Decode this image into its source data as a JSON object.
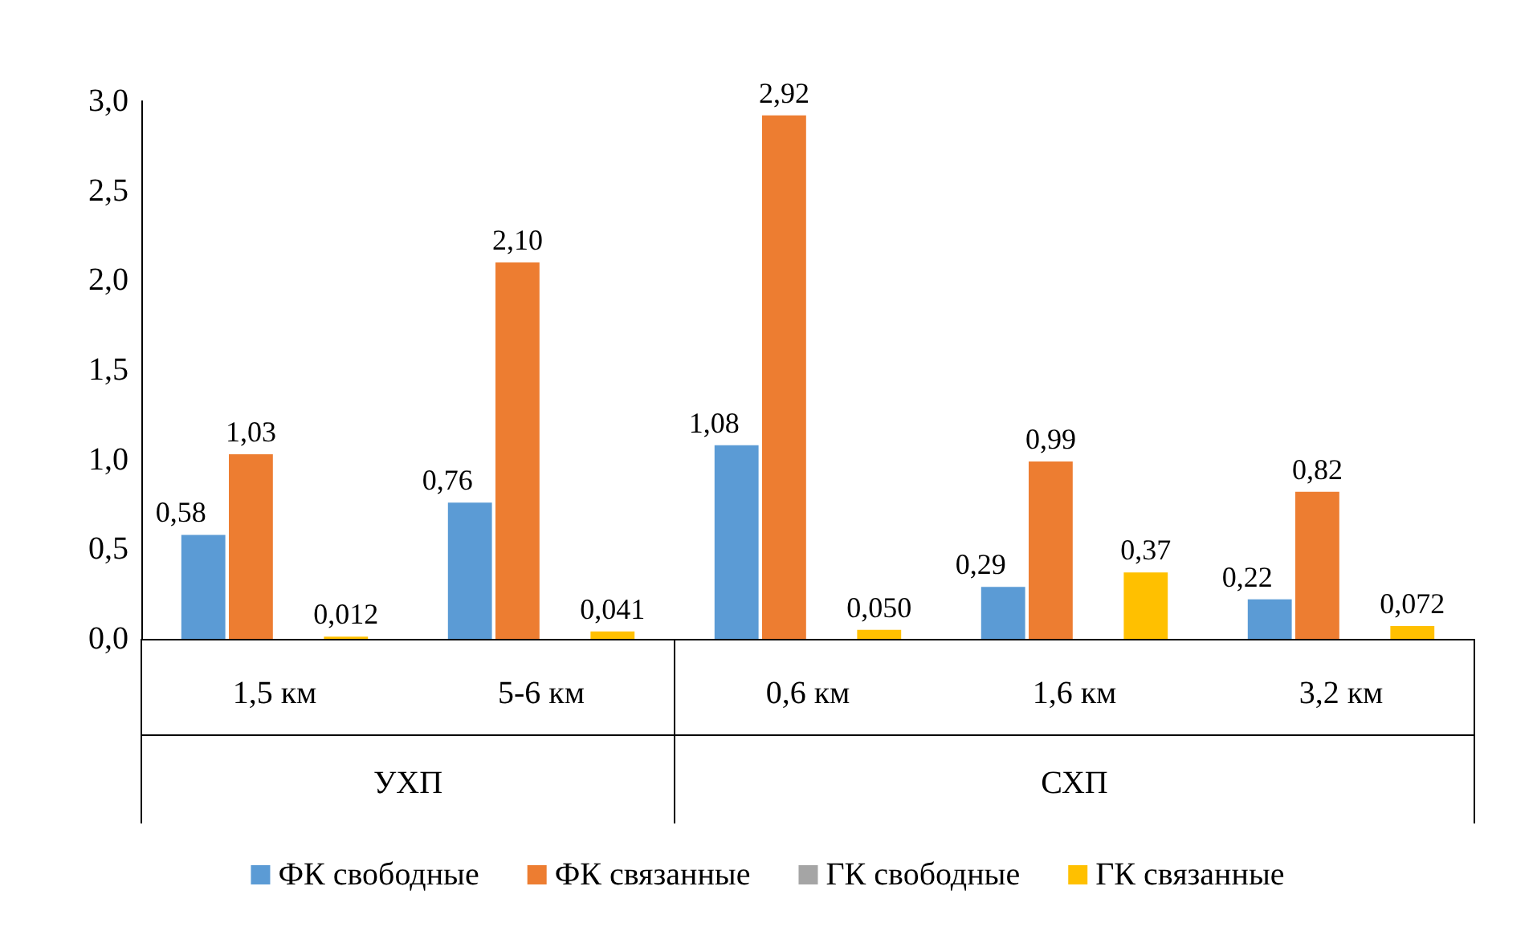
{
  "chart_data": {
    "type": "bar",
    "categories": [
      "1,5 км",
      "5-6 км",
      "0,6 км",
      "1,6 км",
      "3,2 км"
    ],
    "series": [
      {
        "name": "ФК свободные",
        "color": "#5b9bd5",
        "values": [
          0.58,
          0.76,
          1.08,
          0.29,
          0.22
        ],
        "value_labels": [
          "0,58",
          "0,76",
          "1,08",
          "0,29",
          "0,22"
        ]
      },
      {
        "name": "ФК связанные",
        "color": "#ed7d31",
        "values": [
          1.03,
          2.1,
          2.92,
          0.99,
          0.82
        ],
        "value_labels": [
          "1,03",
          "2,10",
          "2,92",
          "0,99",
          "0,82"
        ]
      },
      {
        "name": "ГК свободные",
        "color": "#a5a5a5",
        "values": [
          0,
          0,
          0,
          0,
          0
        ]
      },
      {
        "name": "ГК связанные",
        "color": "#ffc000",
        "values": [
          0.012,
          0.041,
          0.05,
          0.37,
          0.072
        ],
        "value_labels": [
          "0,012",
          "0,041",
          "0,050",
          "0,37",
          "0,072"
        ]
      }
    ],
    "ylim": [
      0,
      3
    ],
    "yticks": [
      {
        "value": 0,
        "label": "0,0"
      },
      {
        "value": 0.5,
        "label": "0,5"
      },
      {
        "value": 1,
        "label": "1,0"
      },
      {
        "value": 1.5,
        "label": "1,5"
      },
      {
        "value": 2,
        "label": "2,0"
      },
      {
        "value": 2.5,
        "label": "2,5"
      },
      {
        "value": 3,
        "label": "3,0"
      }
    ],
    "annotations": [
      "УХП",
      "СХП"
    ],
    "grid": false,
    "legend": "bottom"
  }
}
